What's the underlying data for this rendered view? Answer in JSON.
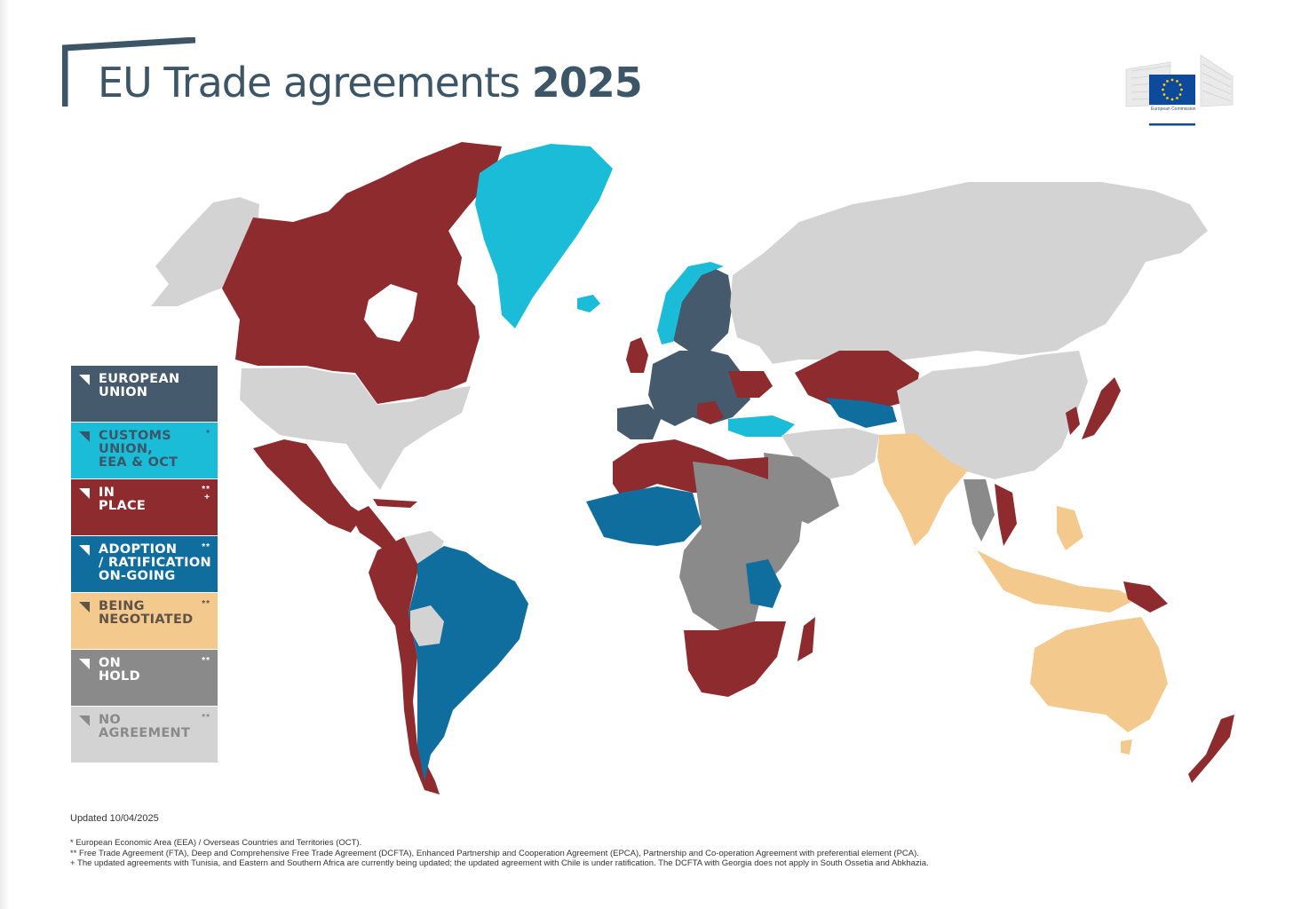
{
  "title": {
    "main": "EU Trade agreements",
    "year": "2025"
  },
  "logo": {
    "name": "european-commission-logo",
    "text": "European Commission"
  },
  "colors": {
    "european_union": "#455a6d",
    "customs_union": "#1bbcd8",
    "in_place": "#8e2b2e",
    "adoption": "#106e9f",
    "negotiated": "#f4c98e",
    "on_hold": "#8a8a8a",
    "no_agreement": "#d3d3d3"
  },
  "legend": [
    {
      "key": "european_union",
      "label": "EUROPEAN\nUNION",
      "mark": "",
      "bg": "#455a6d",
      "fg": "#ffffff"
    },
    {
      "key": "customs_union",
      "label": "CUSTOMS\nUNION,\nEEA & OCT",
      "mark": "*",
      "bg": "#1bbcd8",
      "fg": "#3c5567"
    },
    {
      "key": "in_place",
      "label": "IN\nPLACE",
      "mark": "**\n+",
      "bg": "#8e2b2e",
      "fg": "#ffffff"
    },
    {
      "key": "adoption",
      "label": "ADOPTION\n/ RATIFICATION\nON-GOING",
      "mark": "**",
      "bg": "#106e9f",
      "fg": "#ffffff"
    },
    {
      "key": "negotiated",
      "label": "BEING\nNEGOTIATED",
      "mark": "**",
      "bg": "#f4c98e",
      "fg": "#5d5346"
    },
    {
      "key": "on_hold",
      "label": "ON\nHOLD",
      "mark": "**",
      "bg": "#8a8a8a",
      "fg": "#ffffff"
    },
    {
      "key": "no_agreement",
      "label": "NO\nAGREEMENT",
      "mark": "**",
      "bg": "#d3d3d3",
      "fg": "#8a8a8a"
    }
  ],
  "updated": "Updated 10/04/2025",
  "footnotes": [
    "* European Economic Area (EEA) / Overseas Countries and Territories (OCT).",
    "** Free Trade Agreement (FTA), Deep and Comprehensive Free Trade Agreement (DCFTA), Enhanced Partnership and Cooperation Agreement (EPCA), Partnership and Co-operation Agreement with preferential element (PCA).",
    "+ The updated agreements with Tunisia, and Eastern and Southern Africa are currently being updated; the updated agreement with Chile is under ratification. The DCFTA with Georgia does not apply in South Ossetia and Abkhazia."
  ]
}
